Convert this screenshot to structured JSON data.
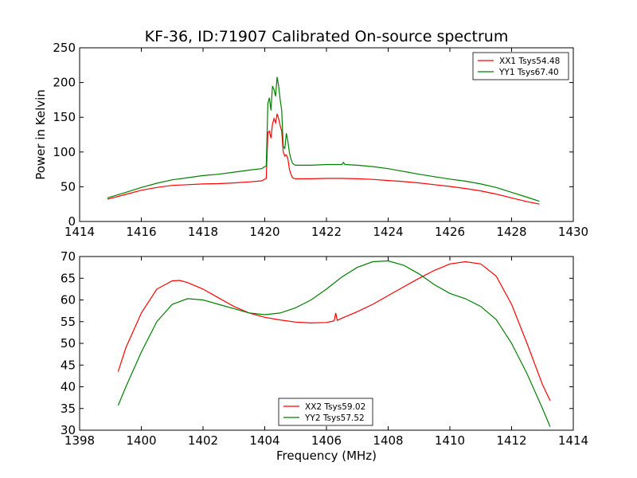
{
  "chart_data": [
    {
      "type": "line",
      "title": "KF-36, ID:71907 Calibrated On-source spectrum",
      "xlabel": "",
      "ylabel": "Power in Kelvin",
      "xlim": [
        1414,
        1430
      ],
      "ylim": [
        0,
        250
      ],
      "xticks": [
        1414,
        1416,
        1418,
        1420,
        1422,
        1424,
        1426,
        1428,
        1430
      ],
      "yticks": [
        0,
        50,
        100,
        150,
        200,
        250
      ],
      "grid": false,
      "legend_position": "top-right",
      "series": [
        {
          "name": "XX1 Tsys54.48",
          "color": "#ff0000",
          "x": [
            1414.9,
            1415.5,
            1416.0,
            1416.5,
            1417.0,
            1417.5,
            1418.0,
            1418.5,
            1419.0,
            1419.5,
            1419.9,
            1420.05,
            1420.1,
            1420.15,
            1420.2,
            1420.25,
            1420.3,
            1420.35,
            1420.4,
            1420.45,
            1420.5,
            1420.55,
            1420.6,
            1420.65,
            1420.7,
            1420.75,
            1420.8,
            1420.85,
            1420.9,
            1420.95,
            1421.0,
            1421.5,
            1422.0,
            1422.5,
            1423.0,
            1423.5,
            1424.0,
            1424.5,
            1425.0,
            1425.5,
            1426.0,
            1426.5,
            1427.0,
            1427.5,
            1428.0,
            1428.5,
            1428.9
          ],
          "y": [
            32,
            39,
            45,
            49,
            52,
            53,
            54,
            54.5,
            55.5,
            57,
            58.5,
            62,
            128,
            130,
            120,
            140,
            148,
            142,
            155,
            148,
            138,
            130,
            100,
            94,
            96,
            90,
            75,
            68,
            63,
            62,
            61.5,
            61.5,
            62,
            62,
            61.5,
            60.5,
            59,
            57.5,
            55.5,
            53,
            50.5,
            47.5,
            44,
            39.5,
            34,
            28.5,
            25
          ]
        },
        {
          "name": "YY1 Tsys67.40",
          "color": "#008000",
          "x": [
            1414.9,
            1415.5,
            1416.0,
            1416.5,
            1417.0,
            1417.5,
            1418.0,
            1418.5,
            1419.0,
            1419.5,
            1419.9,
            1420.05,
            1420.1,
            1420.15,
            1420.2,
            1420.25,
            1420.3,
            1420.35,
            1420.4,
            1420.45,
            1420.5,
            1420.55,
            1420.6,
            1420.65,
            1420.7,
            1420.75,
            1420.8,
            1420.85,
            1420.9,
            1420.95,
            1421.0,
            1421.5,
            1422.0,
            1422.5,
            1422.55,
            1422.6,
            1423.0,
            1423.5,
            1424.0,
            1424.5,
            1425.0,
            1425.5,
            1426.0,
            1426.5,
            1427.0,
            1427.5,
            1428.0,
            1428.5,
            1428.9
          ],
          "y": [
            34,
            42,
            49,
            55,
            60,
            63,
            66,
            68,
            71,
            74,
            76,
            80,
            170,
            178,
            160,
            195,
            190,
            180,
            208,
            195,
            175,
            160,
            108,
            105,
            127,
            115,
            99,
            90,
            84,
            82,
            81,
            81,
            82,
            82,
            85,
            82,
            81,
            79,
            76,
            72,
            68,
            64.5,
            61,
            58,
            54,
            49,
            42,
            35,
            29
          ]
        }
      ]
    },
    {
      "type": "line",
      "title": "",
      "xlabel": "Frequency (MHz)",
      "ylabel": "",
      "xlim": [
        1398,
        1414
      ],
      "ylim": [
        30,
        70
      ],
      "xticks": [
        1398,
        1400,
        1402,
        1404,
        1406,
        1408,
        1410,
        1412,
        1414
      ],
      "yticks": [
        30,
        35,
        40,
        45,
        50,
        55,
        60,
        65,
        70
      ],
      "grid": false,
      "legend_position": "bottom-center",
      "series": [
        {
          "name": "XX2 Tsys59.02",
          "color": "#ff0000",
          "x": [
            1399.25,
            1399.5,
            1400.0,
            1400.5,
            1401.0,
            1401.25,
            1401.5,
            1402.0,
            1402.5,
            1403.0,
            1403.5,
            1404.0,
            1404.5,
            1405.0,
            1405.5,
            1406.0,
            1406.25,
            1406.3,
            1406.35,
            1406.5,
            1407.0,
            1407.5,
            1408.0,
            1408.5,
            1409.0,
            1409.5,
            1410.0,
            1410.5,
            1411.0,
            1411.5,
            1412.0,
            1412.5,
            1413.0,
            1413.25
          ],
          "y": [
            43.5,
            49,
            57,
            62.5,
            64.4,
            64.5,
            64,
            62.5,
            60.5,
            58.5,
            57,
            56,
            55.4,
            54.9,
            54.7,
            54.8,
            55.2,
            57,
            55.3,
            55.8,
            57.3,
            59,
            61,
            63,
            65,
            66.8,
            68.3,
            68.8,
            68.3,
            65.5,
            59,
            50,
            40.5,
            36.8
          ]
        },
        {
          "name": "YY2 Tsys57.52",
          "color": "#008000",
          "x": [
            1399.25,
            1399.5,
            1400.0,
            1400.5,
            1401.0,
            1401.5,
            1402.0,
            1402.5,
            1403.0,
            1403.5,
            1404.0,
            1404.5,
            1405.0,
            1405.5,
            1406.0,
            1406.5,
            1407.0,
            1407.5,
            1408.0,
            1408.5,
            1409.0,
            1409.5,
            1410.0,
            1410.5,
            1411.0,
            1411.5,
            1412.0,
            1412.5,
            1413.0,
            1413.25
          ],
          "y": [
            35.7,
            40,
            48,
            55,
            59,
            60.3,
            60,
            59,
            58,
            57,
            56.6,
            57,
            58.2,
            60,
            62.5,
            65.3,
            67.5,
            68.8,
            69,
            68,
            66,
            63.5,
            61.5,
            60.3,
            58.5,
            55.5,
            50,
            43,
            35,
            30.8
          ]
        }
      ]
    }
  ]
}
